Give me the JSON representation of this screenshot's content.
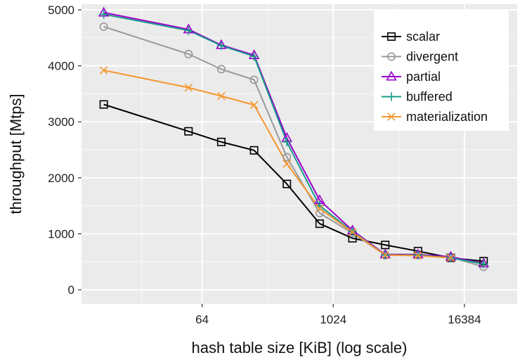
{
  "chart_data": {
    "type": "line",
    "title": "",
    "xlabel": "hash table size [KiB] (log scale)",
    "ylabel": "throughput [Mtps]",
    "x_scale": "log2",
    "x_ticks": [
      64,
      1024,
      16384
    ],
    "x_tick_labels": [
      "64",
      "1024",
      "16384"
    ],
    "xlim": [
      5,
      50000
    ],
    "ylim": [
      -250,
      5100
    ],
    "y_ticks": [
      0,
      1000,
      2000,
      3000,
      4000,
      5000
    ],
    "y_tick_labels": [
      "0",
      "1000",
      "2000",
      "3000",
      "4000",
      "5000"
    ],
    "grid": true,
    "legend_position": "top-right",
    "x": [
      8,
      48,
      96,
      192,
      384,
      768,
      1536,
      3072,
      6144,
      12288,
      24576,
      49152
    ],
    "series": [
      {
        "name": "scalar",
        "marker": "square",
        "color": "#000000",
        "values": [
          3310,
          2830,
          2640,
          2490,
          1890,
          1180,
          920,
          800,
          690,
          570,
          510,
          null
        ]
      },
      {
        "name": "divergent",
        "marker": "circle",
        "color": "#999999",
        "values": [
          4700,
          4210,
          3940,
          3750,
          2370,
          1370,
          1010,
          620,
          620,
          580,
          410,
          null
        ]
      },
      {
        "name": "partial",
        "marker": "triangle",
        "color": "#9900cc",
        "values": [
          4950,
          4650,
          4370,
          4190,
          2710,
          1600,
          1060,
          630,
          630,
          590,
          470,
          null
        ]
      },
      {
        "name": "buffered",
        "marker": "plus",
        "color": "#169b8a",
        "values": [
          4920,
          4630,
          4360,
          4170,
          2640,
          1500,
          1040,
          620,
          620,
          570,
          460,
          null
        ]
      },
      {
        "name": "materialization",
        "marker": "x",
        "color": "#f5962d",
        "values": [
          3920,
          3610,
          3460,
          3300,
          2250,
          1450,
          1030,
          620,
          610,
          570,
          null,
          null
        ]
      }
    ]
  },
  "legend": {
    "entries": [
      "scalar",
      "divergent",
      "partial",
      "buffered",
      "materialization"
    ]
  }
}
